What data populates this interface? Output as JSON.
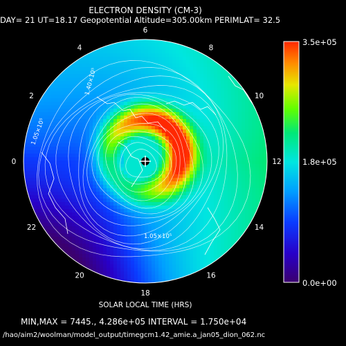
{
  "chart_data": {
    "type": "heatmap",
    "projection": "polar",
    "title": "ELECTRON DENSITY (CM-3)",
    "subtitle": "DAY= 21 UT=18.17 Geopotential Altitude=305.00km PERIMLAT= 32.5",
    "xlabel": "SOLAR LOCAL TIME (HRS)",
    "hour_ticks": [
      "0",
      "2",
      "4",
      "6",
      "8",
      "10",
      "12",
      "14",
      "16",
      "18",
      "20",
      "22"
    ],
    "colorbar": {
      "min": 0,
      "max": 350000,
      "tick_labels": [
        "3.5e+05",
        "1.8e+05",
        "0.0e+00"
      ],
      "colors": [
        "#3b006e",
        "#2800c8",
        "#0a3cff",
        "#00a0ff",
        "#00e6e0",
        "#00e878",
        "#60ff00",
        "#e6e600",
        "#ff8c00",
        "#ff2800"
      ]
    },
    "contour_labels": [
      "1.40×10⁵",
      "1.05×10⁵",
      "1.05×10⁵"
    ],
    "field": {
      "background": 170000,
      "peak": 425000,
      "ring_center_hour": 12,
      "ring_center_colat_frac": 0.0,
      "ring_radius_frac": 0.29,
      "ring_width_frac": 0.09,
      "dip_hour": 20.5,
      "dip_value": 20000
    },
    "min_max": "MIN,MAX =        7445., 4.286e+05 INTERVAL =  1.750e+04",
    "file_path": "/hao/aim2/woolman/model_output/timegcm1.42_amie.a_jan05_dion_062.nc"
  }
}
